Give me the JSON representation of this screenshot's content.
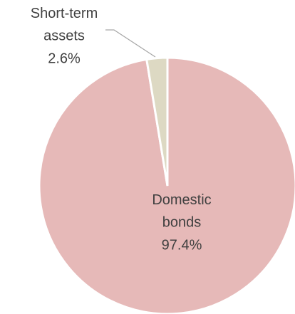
{
  "chart_data": {
    "type": "pie",
    "categories": [
      "Domestic bonds",
      "Short-term assets"
    ],
    "values": [
      97.4,
      2.6
    ],
    "value_labels": [
      "97.4%",
      "2.6%"
    ],
    "colors": [
      "#e6b9b8",
      "#ddd9c3"
    ]
  }
}
